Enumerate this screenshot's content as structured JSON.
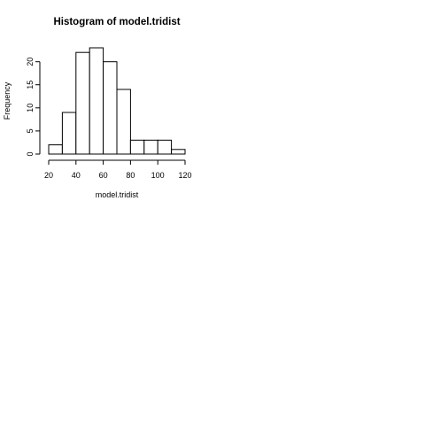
{
  "chart_data": {
    "type": "bar",
    "title": "Histogram of model.tridist",
    "xlabel": "model.tridist",
    "ylabel": "Frequency",
    "bins": [
      {
        "start": 20,
        "end": 30,
        "count": 2
      },
      {
        "start": 30,
        "end": 40,
        "count": 9
      },
      {
        "start": 40,
        "end": 50,
        "count": 22
      },
      {
        "start": 50,
        "end": 60,
        "count": 23
      },
      {
        "start": 60,
        "end": 70,
        "count": 20
      },
      {
        "start": 70,
        "end": 80,
        "count": 14
      },
      {
        "start": 80,
        "end": 90,
        "count": 3
      },
      {
        "start": 90,
        "end": 100,
        "count": 3
      },
      {
        "start": 100,
        "end": 110,
        "count": 3
      },
      {
        "start": 110,
        "end": 120,
        "count": 1
      }
    ],
    "x_ticks": [
      "20",
      "40",
      "60",
      "80",
      "100",
      "120"
    ],
    "y_ticks": [
      "0",
      "5",
      "10",
      "15",
      "20"
    ],
    "xlim": [
      20,
      120
    ],
    "ylim": [
      0,
      23
    ],
    "grid": false,
    "bar_fill": "#ffffff",
    "bar_stroke": "#000000"
  }
}
